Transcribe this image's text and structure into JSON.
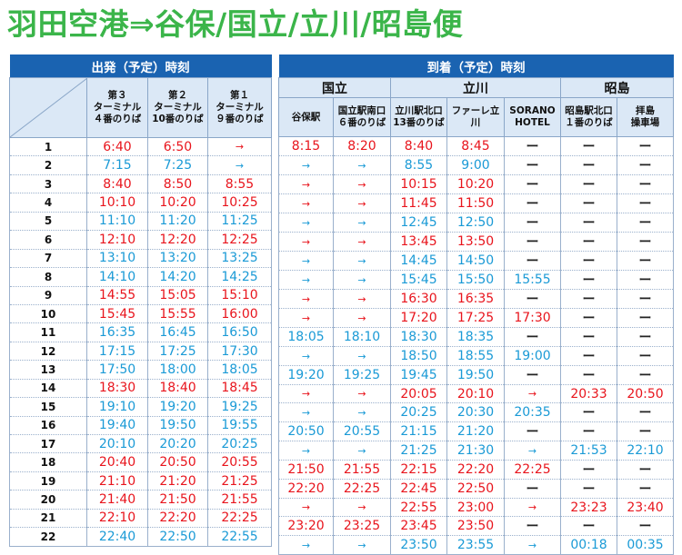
{
  "title": "羽田空港⇒谷保/国立/立川/昭島便",
  "left": {
    "band": "出発（予定）時刻",
    "columns": [
      {
        "l1": "第３",
        "l2": "ターミナル",
        "l3": "４番のりば"
      },
      {
        "l1": "第２",
        "l2": "ターミナル",
        "l3": "10番のりば"
      },
      {
        "l1": "第１",
        "l2": "ターミナル",
        "l3": "９番のりば"
      }
    ]
  },
  "right": {
    "band": "到着（予定）時刻",
    "groups": [
      "国立",
      "立川",
      "昭島"
    ],
    "columns": [
      {
        "l1": "谷保駅",
        "l2": ""
      },
      {
        "l1": "国立駅南口",
        "l2": "６番のりば"
      },
      {
        "l1": "立川駅北口",
        "l2": "13番のりば"
      },
      {
        "l1": "ファーレ立川",
        "l2": ""
      },
      {
        "l1": "SORANO",
        "l2": "HOTEL"
      },
      {
        "l1": "昭島駅北口",
        "l2": "１番のりば"
      },
      {
        "l1": "拝島",
        "l2": "操車場"
      }
    ]
  },
  "symbols": {
    "arrow": "→",
    "dash": "ー"
  },
  "colors": {
    "red": "#e8141c",
    "blue": "#1a9ad6",
    "band": "#1a63b1",
    "header_bg": "#dbe8f6",
    "title": "#3bb54a"
  },
  "rows": [
    {
      "n": "1",
      "c": "r",
      "dep": [
        "6:40",
        "6:50",
        "→"
      ],
      "arr": [
        "8:15",
        "8:20",
        "8:40",
        "8:45",
        "ー",
        "ー",
        "ー"
      ]
    },
    {
      "n": "2",
      "c": "b",
      "dep": [
        "7:15",
        "7:25",
        "→"
      ],
      "arr": [
        "→",
        "→",
        "8:55",
        "9:00",
        "ー",
        "ー",
        "ー"
      ]
    },
    {
      "n": "3",
      "c": "r",
      "dep": [
        "8:40",
        "8:50",
        "8:55"
      ],
      "arr": [
        "→",
        "→",
        "10:15",
        "10:20",
        "ー",
        "ー",
        "ー"
      ]
    },
    {
      "n": "4",
      "c": "r",
      "dep": [
        "10:10",
        "10:20",
        "10:25"
      ],
      "arr": [
        "→",
        "→",
        "11:45",
        "11:50",
        "ー",
        "ー",
        "ー"
      ]
    },
    {
      "n": "5",
      "c": "b",
      "dep": [
        "11:10",
        "11:20",
        "11:25"
      ],
      "arr": [
        "→",
        "→",
        "12:45",
        "12:50",
        "ー",
        "ー",
        "ー"
      ]
    },
    {
      "n": "6",
      "c": "r",
      "dep": [
        "12:10",
        "12:20",
        "12:25"
      ],
      "arr": [
        "→",
        "→",
        "13:45",
        "13:50",
        "ー",
        "ー",
        "ー"
      ]
    },
    {
      "n": "7",
      "c": "b",
      "dep": [
        "13:10",
        "13:20",
        "13:25"
      ],
      "arr": [
        "→",
        "→",
        "14:45",
        "14:50",
        "ー",
        "ー",
        "ー"
      ]
    },
    {
      "n": "8",
      "c": "b",
      "dep": [
        "14:10",
        "14:20",
        "14:25"
      ],
      "arr": [
        "→",
        "→",
        "15:45",
        "15:50",
        "15:55",
        "ー",
        "ー"
      ]
    },
    {
      "n": "9",
      "c": "r",
      "dep": [
        "14:55",
        "15:05",
        "15:10"
      ],
      "arr": [
        "→",
        "→",
        "16:30",
        "16:35",
        "ー",
        "ー",
        "ー"
      ]
    },
    {
      "n": "10",
      "c": "r",
      "dep": [
        "15:45",
        "15:55",
        "16:00"
      ],
      "arr": [
        "→",
        "→",
        "17:20",
        "17:25",
        "17:30",
        "ー",
        "ー"
      ]
    },
    {
      "n": "11",
      "c": "b",
      "dep": [
        "16:35",
        "16:45",
        "16:50"
      ],
      "arr": [
        "18:05",
        "18:10",
        "18:30",
        "18:35",
        "ー",
        "ー",
        "ー"
      ]
    },
    {
      "n": "12",
      "c": "b",
      "dep": [
        "17:15",
        "17:25",
        "17:30"
      ],
      "arr": [
        "→",
        "→",
        "18:50",
        "18:55",
        "19:00",
        "ー",
        "ー"
      ]
    },
    {
      "n": "13",
      "c": "b",
      "dep": [
        "17:50",
        "18:00",
        "18:05"
      ],
      "arr": [
        "19:20",
        "19:25",
        "19:45",
        "19:50",
        "ー",
        "ー",
        "ー"
      ]
    },
    {
      "n": "14",
      "c": "r",
      "dep": [
        "18:30",
        "18:40",
        "18:45"
      ],
      "arr": [
        "→",
        "→",
        "20:05",
        "20:10",
        "→",
        "20:33",
        "20:50"
      ]
    },
    {
      "n": "15",
      "c": "b",
      "dep": [
        "19:10",
        "19:20",
        "19:25"
      ],
      "arr": [
        "→",
        "→",
        "20:25",
        "20:30",
        "20:35",
        "ー",
        "ー"
      ]
    },
    {
      "n": "16",
      "c": "b",
      "dep": [
        "19:40",
        "19:50",
        "19:55"
      ],
      "arr": [
        "20:50",
        "20:55",
        "21:15",
        "21:20",
        "ー",
        "ー",
        "ー"
      ]
    },
    {
      "n": "17",
      "c": "b",
      "dep": [
        "20:10",
        "20:20",
        "20:25"
      ],
      "arr": [
        "→",
        "→",
        "21:25",
        "21:30",
        "→",
        "21:53",
        "22:10"
      ]
    },
    {
      "n": "18",
      "c": "r",
      "dep": [
        "20:40",
        "20:50",
        "20:55"
      ],
      "arr": [
        "21:50",
        "21:55",
        "22:15",
        "22:20",
        "22:25",
        "ー",
        "ー"
      ]
    },
    {
      "n": "19",
      "c": "r",
      "dep": [
        "21:10",
        "21:20",
        "21:25"
      ],
      "arr": [
        "22:20",
        "22:25",
        "22:45",
        "22:50",
        "ー",
        "ー",
        "ー"
      ]
    },
    {
      "n": "20",
      "c": "r",
      "dep": [
        "21:40",
        "21:50",
        "21:55"
      ],
      "arr": [
        "→",
        "→",
        "22:55",
        "23:00",
        "→",
        "23:23",
        "23:40"
      ]
    },
    {
      "n": "21",
      "c": "r",
      "dep": [
        "22:10",
        "22:20",
        "22:25"
      ],
      "arr": [
        "23:20",
        "23:25",
        "23:45",
        "23:50",
        "ー",
        "ー",
        "ー"
      ]
    },
    {
      "n": "22",
      "c": "b",
      "dep": [
        "22:40",
        "22:50",
        "22:55"
      ],
      "arr": [
        "→",
        "→",
        "23:50",
        "23:55",
        "→",
        "00:18",
        "00:35"
      ]
    }
  ]
}
